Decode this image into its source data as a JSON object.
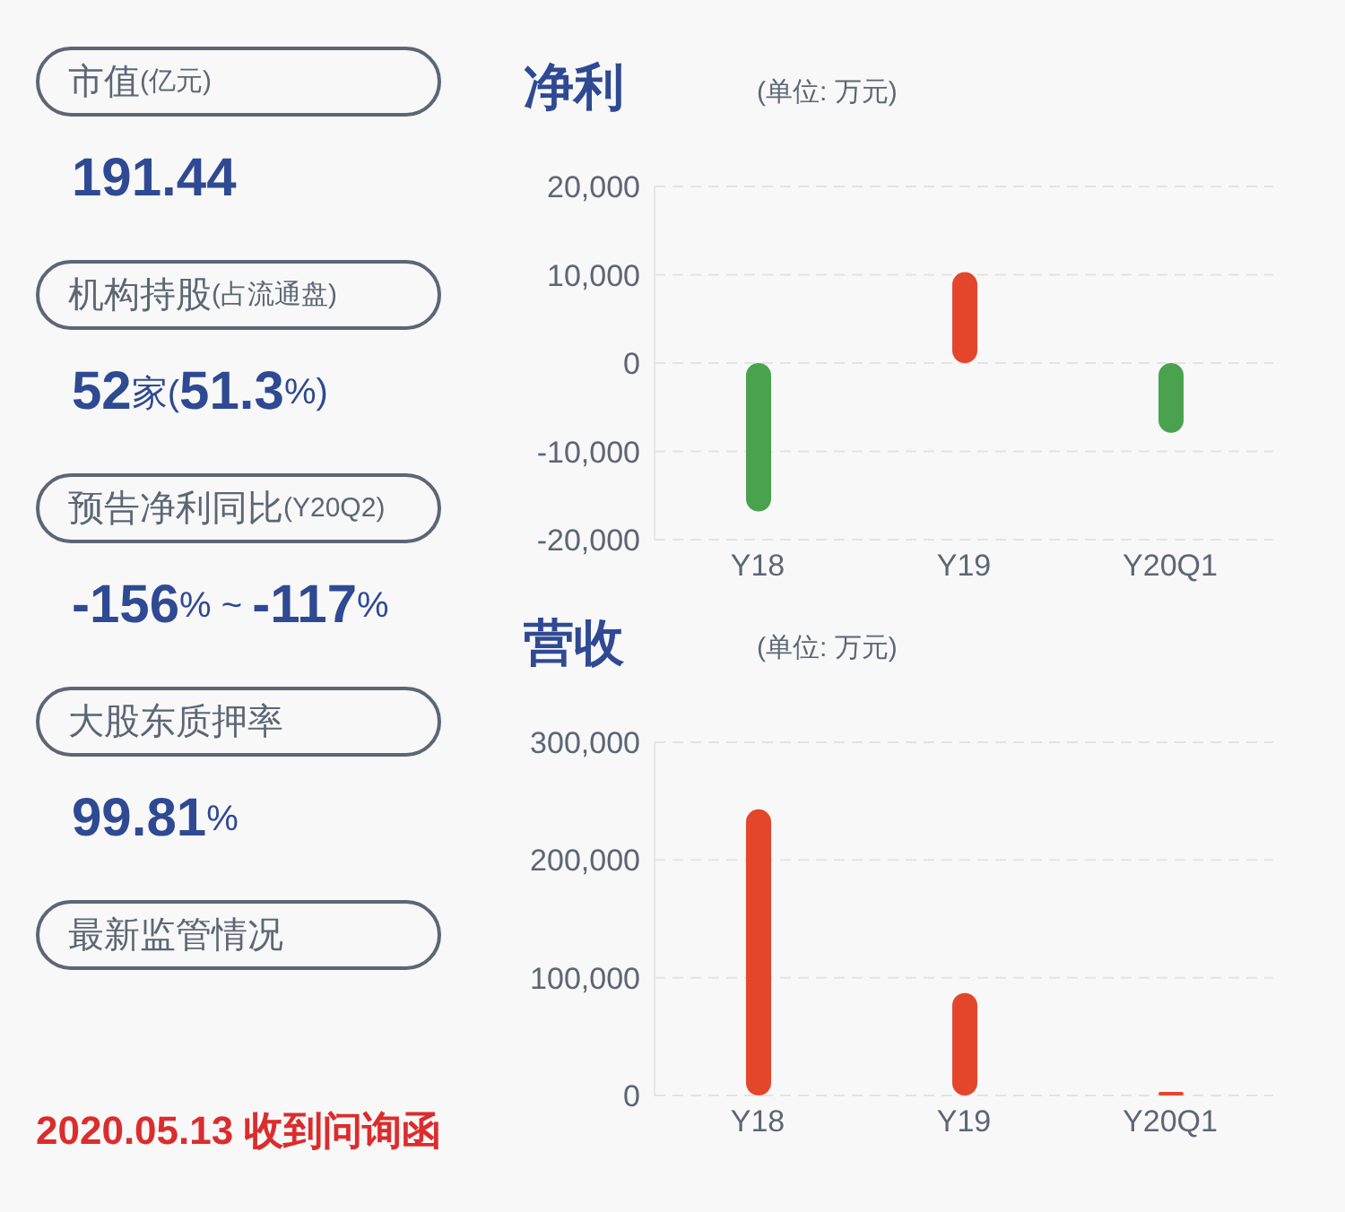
{
  "chart_data": [
    {
      "type": "other",
      "annotations": [
        "市值(亿元)",
        "191.44",
        "机构持股(占流通盘)",
        "52家(51.3%)",
        "预告净利同比(Y20Q2)",
        "-156% ~ -117%",
        "大股东质押率",
        "99.81%",
        "最新监管情况",
        "2020.05.13 收到问询函"
      ]
    },
    {
      "type": "bar",
      "title": "净利",
      "subtitle": "(单位: 万元)",
      "categories": [
        "Y18",
        "Y19",
        "Y20Q1"
      ],
      "values": [
        -16800,
        10300,
        -7900
      ],
      "colors": [
        "#4aa24f",
        "#e4462c",
        "#4aa24f"
      ],
      "ylim": [
        -20000,
        20000
      ],
      "yticks": [
        {
          "value": -20000,
          "label": "-20,000"
        },
        {
          "value": -10000,
          "label": "-10,000"
        },
        0,
        {
          "value": 10000,
          "label": "10,000"
        },
        {
          "value": 20000,
          "label": "20,000"
        }
      ],
      "grid": "y"
    },
    {
      "type": "bar",
      "title": "营收",
      "subtitle": "(单位: 万元)",
      "categories": [
        "Y18",
        "Y19",
        "Y20Q1"
      ],
      "values": [
        243000,
        87000,
        3000
      ],
      "colors": [
        "#e4462c",
        "#e4462c",
        "#e4462c"
      ],
      "ylim": [
        0,
        300000
      ],
      "yticks": [
        0,
        {
          "value": 100000,
          "label": "100,000"
        },
        {
          "value": 200000,
          "label": "200,000"
        },
        {
          "value": 300000,
          "label": "300,000"
        }
      ],
      "grid": "y"
    }
  ]
}
